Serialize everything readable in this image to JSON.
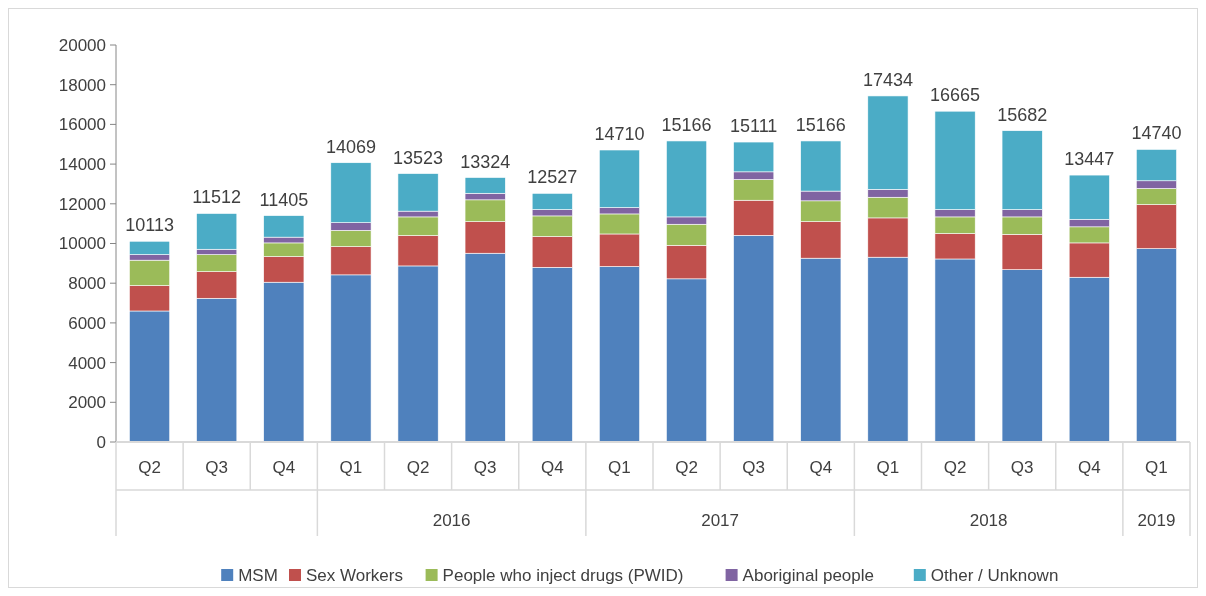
{
  "chart_data": {
    "type": "bar",
    "stacked": true,
    "categories": [
      "Q2",
      "Q3",
      "Q4",
      "Q1",
      "Q2",
      "Q3",
      "Q4",
      "Q1",
      "Q2",
      "Q3",
      "Q4",
      "Q1",
      "Q2",
      "Q3",
      "Q4",
      "Q1"
    ],
    "series": [
      {
        "name": "MSM",
        "color": "#4f81bd",
        "values": [
          6600,
          7240,
          8050,
          8420,
          8870,
          9510,
          8800,
          8840,
          8220,
          10410,
          9260,
          9310,
          9220,
          8680,
          8300,
          9740
        ]
      },
      {
        "name": "Sex Workers",
        "color": "#c0504d",
        "values": [
          1280,
          1340,
          1290,
          1420,
          1530,
          1590,
          1550,
          1640,
          1690,
          1770,
          1840,
          1980,
          1280,
          1780,
          1730,
          2220
        ]
      },
      {
        "name": "People who inject drugs (PWID)",
        "color": "#9bbb59",
        "values": [
          1280,
          860,
          690,
          820,
          940,
          1100,
          1040,
          1010,
          1060,
          1040,
          1050,
          1040,
          840,
          880,
          810,
          810
        ]
      },
      {
        "name": "Aboriginal people",
        "color": "#8064a2",
        "values": [
          280,
          270,
          290,
          390,
          290,
          330,
          320,
          320,
          370,
          390,
          490,
          400,
          370,
          370,
          380,
          390
        ]
      },
      {
        "name": "Other / Unknown",
        "color": "#4bacc6",
        "values": [
          673,
          1802,
          1085,
          3019,
          1893,
          794,
          817,
          2900,
          3826,
          1501,
          2526,
          4704,
          4955,
          3972,
          2227,
          1580
        ]
      }
    ],
    "totals": [
      "10113",
      "11512",
      "11405",
      "14069",
      "13523",
      "13324",
      "12527",
      "14710",
      "15166",
      "15111",
      "15166",
      "17434",
      "16665",
      "15682",
      "13447",
      "14740"
    ],
    "annotations": [
      "2016",
      "2017",
      "2018",
      "2019"
    ],
    "ylim": [
      0,
      20000
    ],
    "yticks": [
      0,
      2000,
      4000,
      6000,
      8000,
      10000,
      12000,
      14000,
      16000,
      18000,
      20000
    ],
    "grid": false,
    "legend": "bottom"
  }
}
